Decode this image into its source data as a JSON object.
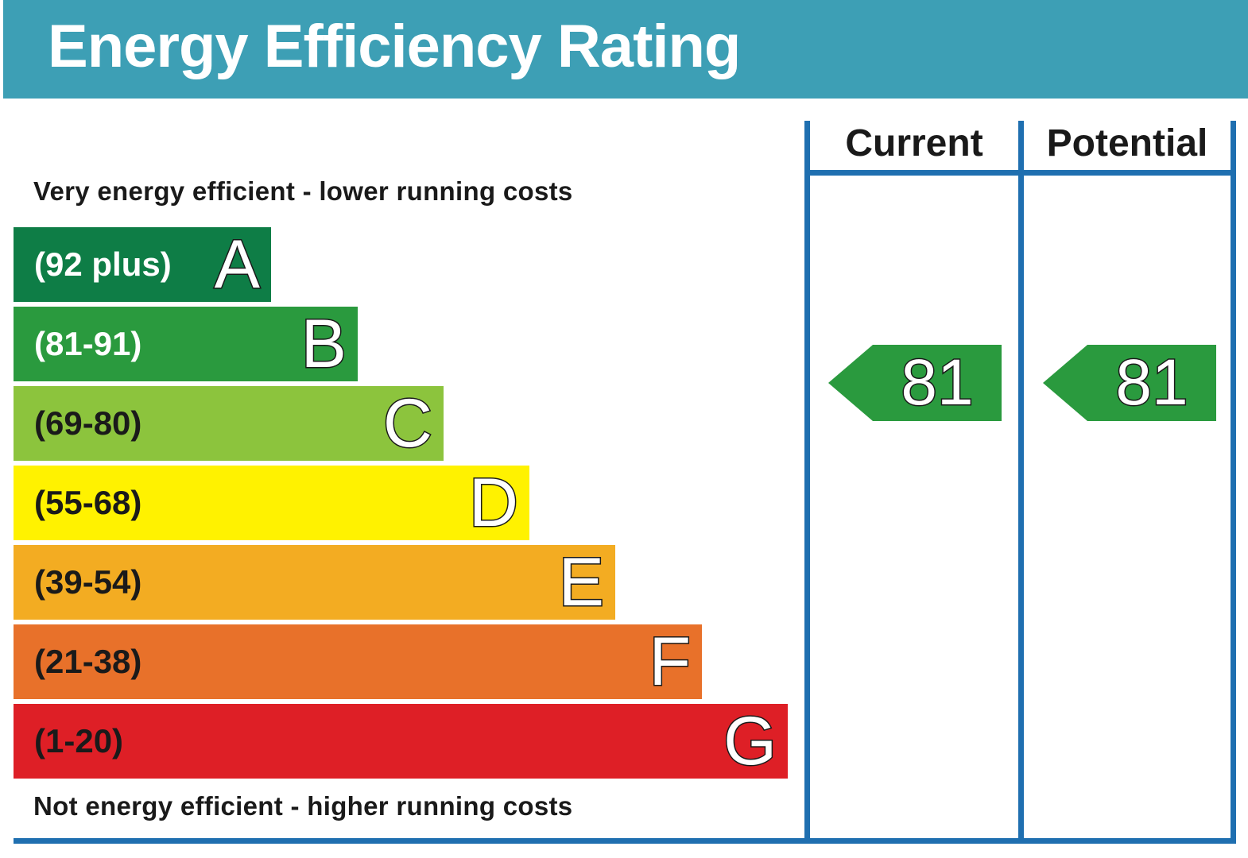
{
  "header": {
    "title": "Energy Efficiency Rating"
  },
  "notes": {
    "top": "Very energy efficient - lower running costs",
    "bottom": "Not energy efficient - higher running costs"
  },
  "columns": {
    "current": "Current",
    "potential": "Potential"
  },
  "chart_data": {
    "type": "bar",
    "title": "Energy Efficiency Rating",
    "bands": [
      {
        "range": "(92 plus)",
        "letter": "A",
        "color": "#0e7d46",
        "range_color": "#ffffff"
      },
      {
        "range": "(81-91)",
        "letter": "B",
        "color": "#2a9a3e",
        "range_color": "#ffffff"
      },
      {
        "range": "(69-80)",
        "letter": "C",
        "color": "#8cc43d",
        "range_color": "#1a1a1a"
      },
      {
        "range": "(55-68)",
        "letter": "D",
        "color": "#fff200",
        "range_color": "#1a1a1a"
      },
      {
        "range": "(39-54)",
        "letter": "E",
        "color": "#f3ac22",
        "range_color": "#1a1a1a"
      },
      {
        "range": "(21-38)",
        "letter": "F",
        "color": "#e8712a",
        "range_color": "#1a1a1a"
      },
      {
        "range": "(1-20)",
        "letter": "G",
        "color": "#de1f26",
        "range_color": "#1a1a1a"
      }
    ],
    "current": {
      "value": "81",
      "color": "#2a9a3e"
    },
    "potential": {
      "value": "81",
      "color": "#2a9a3e"
    }
  }
}
